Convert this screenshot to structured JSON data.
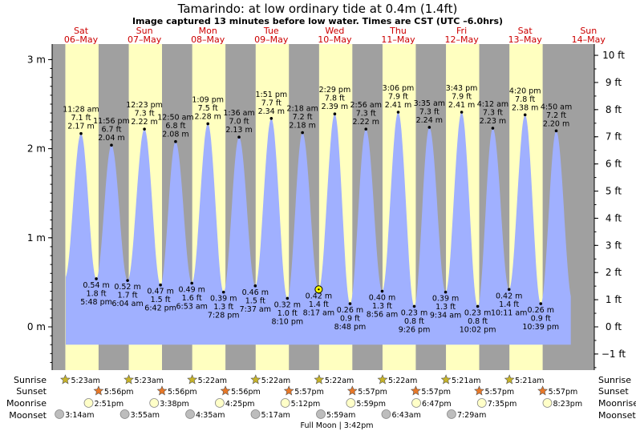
{
  "header": {
    "title": "Tamarindo: at low  ordinary tide at 0.4m (1.4ft)",
    "subtitle": "Image captured 13 minutes before low water. Times are CST (UTC –6.0hrs)"
  },
  "chart_data": {
    "type": "area",
    "title": "Tamarindo: at low  ordinary tide at 0.4m (1.4ft)",
    "ylabel_left": "m",
    "ylabel_right": "ft",
    "ylim_m": [
      -0.55,
      3.08
    ],
    "days": [
      {
        "name": "Sat",
        "date": "06–May"
      },
      {
        "name": "Sun",
        "date": "07–May"
      },
      {
        "name": "Mon",
        "date": "08–May"
      },
      {
        "name": "Tue",
        "date": "09–May"
      },
      {
        "name": "Wed",
        "date": "10–May"
      },
      {
        "name": "Thu",
        "date": "11–May"
      },
      {
        "name": "Fri",
        "date": "12–May"
      },
      {
        "name": "Sat",
        "date": "13–May"
      },
      {
        "name": "Sun",
        "date": "14–May"
      }
    ],
    "left_ticks": [
      {
        "value": 0,
        "label": "0 m"
      },
      {
        "value": 1,
        "label": "1 m"
      },
      {
        "value": 2,
        "label": "2 m"
      },
      {
        "value": 3,
        "label": "3 m"
      }
    ],
    "right_ticks": [
      {
        "value": -1,
        "label": "−1 ft"
      },
      {
        "value": 0,
        "label": "0 ft"
      },
      {
        "value": 1,
        "label": "1 ft"
      },
      {
        "value": 2,
        "label": "2 ft"
      },
      {
        "value": 3,
        "label": "3 ft"
      },
      {
        "value": 4,
        "label": "4 ft"
      },
      {
        "value": 5,
        "label": "5 ft"
      },
      {
        "value": 6,
        "label": "6 ft"
      },
      {
        "value": 7,
        "label": "7 ft"
      },
      {
        "value": 8,
        "label": "8 ft"
      },
      {
        "value": 9,
        "label": "9 ft"
      },
      {
        "value": 10,
        "label": "10 ft"
      }
    ],
    "extremes": [
      {
        "day": 0.0,
        "type": "high",
        "time": "11:28 am",
        "ft": "7.1 ft",
        "m": "2.17 m",
        "value": 2.17
      },
      {
        "day": 0.241,
        "type": "low",
        "time": "5:48 pm",
        "ft": "1.8 ft",
        "m": "0.54 m",
        "value": 0.54
      },
      {
        "day": 0.48,
        "type": "high",
        "time": "11:56 pm",
        "ft": "6.7 ft",
        "m": "2.04 m",
        "value": 2.04
      },
      {
        "day": 0.734,
        "type": "low",
        "time": "6:04 am",
        "ft": "1.7 ft",
        "m": "0.52 m",
        "value": 0.52
      },
      {
        "day": 1.0,
        "type": "high",
        "time": "12:23 pm",
        "ft": "7.3 ft",
        "m": "2.22 m",
        "value": 2.22
      },
      {
        "day": 1.253,
        "type": "low",
        "time": "6:42 pm",
        "ft": "1.5 ft",
        "m": "0.47 m",
        "value": 0.47
      },
      {
        "day": 1.491,
        "type": "high",
        "time": "12:50 am",
        "ft": "6.8 ft",
        "m": "2.08 m",
        "value": 2.08
      },
      {
        "day": 1.747,
        "type": "low",
        "time": "6:53 am",
        "ft": "1.6 ft",
        "m": "0.49 m",
        "value": 0.49
      },
      {
        "day": 2.0,
        "type": "high",
        "time": "1:09 pm",
        "ft": "7.5 ft",
        "m": "2.28 m",
        "value": 2.28
      },
      {
        "day": 2.247,
        "type": "low",
        "time": "7:28 pm",
        "ft": "1.3 ft",
        "m": "0.39 m",
        "value": 0.39
      },
      {
        "day": 2.491,
        "type": "high",
        "time": "1:36 am",
        "ft": "7.0 ft",
        "m": "2.13 m",
        "value": 2.13
      },
      {
        "day": 2.747,
        "type": "low",
        "time": "7:37 am",
        "ft": "1.5 ft",
        "m": "0.46 m",
        "value": 0.46
      },
      {
        "day": 3.0,
        "type": "high",
        "time": "1:51 pm",
        "ft": "7.7 ft",
        "m": "2.34 m",
        "value": 2.34
      },
      {
        "day": 3.253,
        "type": "low",
        "time": "8:10 pm",
        "ft": "1.0 ft",
        "m": "0.32 m",
        "value": 0.32
      },
      {
        "day": 3.491,
        "type": "high",
        "time": "2:18 am",
        "ft": "7.2 ft",
        "m": "2.18 m",
        "value": 2.18
      },
      {
        "day": 3.747,
        "type": "low",
        "time": "8:17 am",
        "ft": "1.4 ft",
        "m": "0.42 m",
        "value": 0.42
      },
      {
        "day": 4.0,
        "type": "high",
        "time": "2:29 pm",
        "ft": "7.8 ft",
        "m": "2.39 m",
        "value": 2.39
      },
      {
        "day": 4.241,
        "type": "low",
        "time": "8:48 pm",
        "ft": "0.9 ft",
        "m": "0.26 m",
        "value": 0.26
      },
      {
        "day": 4.491,
        "type": "high",
        "time": "2:56 am",
        "ft": "7.3 ft",
        "m": "2.22 m",
        "value": 2.22
      },
      {
        "day": 4.747,
        "type": "low",
        "time": "8:56 am",
        "ft": "1.3 ft",
        "m": "0.40 m",
        "value": 0.4
      },
      {
        "day": 5.0,
        "type": "high",
        "time": "3:06 pm",
        "ft": "7.9 ft",
        "m": "2.41 m",
        "value": 2.41
      },
      {
        "day": 5.253,
        "type": "low",
        "time": "9:26 pm",
        "ft": "0.8 ft",
        "m": "0.23 m",
        "value": 0.23
      },
      {
        "day": 5.491,
        "type": "high",
        "time": "3:35 am",
        "ft": "7.3 ft",
        "m": "2.24 m",
        "value": 2.24
      },
      {
        "day": 5.747,
        "type": "low",
        "time": "9:34 am",
        "ft": "1.3 ft",
        "m": "0.39 m",
        "value": 0.39
      },
      {
        "day": 6.0,
        "type": "high",
        "time": "3:43 pm",
        "ft": "7.9 ft",
        "m": "2.41 m",
        "value": 2.41
      },
      {
        "day": 6.253,
        "type": "low",
        "time": "10:02 pm",
        "ft": "0.8 ft",
        "m": "0.23 m",
        "value": 0.23
      },
      {
        "day": 6.491,
        "type": "high",
        "time": "4:12 am",
        "ft": "7.3 ft",
        "m": "2.23 m",
        "value": 2.23
      },
      {
        "day": 6.747,
        "type": "low",
        "time": "10:11 am",
        "ft": "1.4 ft",
        "m": "0.42 m",
        "value": 0.42
      },
      {
        "day": 7.0,
        "type": "high",
        "time": "4:20 pm",
        "ft": "7.8 ft",
        "m": "2.38 m",
        "value": 2.38
      },
      {
        "day": 7.247,
        "type": "low",
        "time": "10:39 pm",
        "ft": "0.9 ft",
        "m": "0.26 m",
        "value": 0.26
      },
      {
        "day": 7.491,
        "type": "high",
        "time": "4:50 am",
        "ft": "7.2 ft",
        "m": "2.20 m",
        "value": 2.2
      }
    ],
    "current_marker_day": 3.747,
    "current_marker_value": 0.42,
    "colors": {
      "day": "#ffffc0",
      "night": "#a0a0a0",
      "water": "#a0b0ff",
      "star_sunrise": "#c8b428",
      "star_sunset": "#e87828",
      "moonrise": "#ffffc8",
      "moonset": "#bdbdbd"
    }
  },
  "rows": {
    "sunrise_label": "Sunrise",
    "sunset_label": "Sunset",
    "moonrise_label": "Moonrise",
    "moonset_label": "Moonset",
    "sunrise": [
      {
        "day": 0,
        "time": "5:23am"
      },
      {
        "day": 1,
        "time": "5:23am"
      },
      {
        "day": 2,
        "time": "5:22am"
      },
      {
        "day": 3,
        "time": "5:22am"
      },
      {
        "day": 4,
        "time": "5:22am"
      },
      {
        "day": 5,
        "time": "5:22am"
      },
      {
        "day": 6,
        "time": "5:21am"
      },
      {
        "day": 7,
        "time": "5:21am"
      }
    ],
    "sunset": [
      {
        "day": 0,
        "time": "5:56pm"
      },
      {
        "day": 1,
        "time": "5:56pm"
      },
      {
        "day": 2,
        "time": "5:56pm"
      },
      {
        "day": 3,
        "time": "5:57pm"
      },
      {
        "day": 4,
        "time": "5:57pm"
      },
      {
        "day": 5,
        "time": "5:57pm"
      },
      {
        "day": 6,
        "time": "5:57pm"
      },
      {
        "day": 7,
        "time": "5:57pm"
      }
    ],
    "moonrise": [
      {
        "day": 0,
        "time": "2:51pm"
      },
      {
        "day": 1,
        "time": "3:38pm"
      },
      {
        "day": 2,
        "time": "4:25pm"
      },
      {
        "day": 3,
        "time": "5:12pm"
      },
      {
        "day": 4,
        "time": "5:59pm"
      },
      {
        "day": 5,
        "time": "6:47pm"
      },
      {
        "day": 6,
        "time": "7:35pm"
      },
      {
        "day": 7,
        "time": "8:23pm"
      }
    ],
    "moonset": [
      {
        "day": 0,
        "time": "3:14am"
      },
      {
        "day": 1,
        "time": "3:55am"
      },
      {
        "day": 2,
        "time": "4:35am"
      },
      {
        "day": 3,
        "time": "5:17am"
      },
      {
        "day": 4,
        "time": "5:59am"
      },
      {
        "day": 5,
        "time": "6:43am"
      },
      {
        "day": 6,
        "time": "7:29am"
      }
    ],
    "full_moon": "Full Moon | 3:42pm"
  }
}
